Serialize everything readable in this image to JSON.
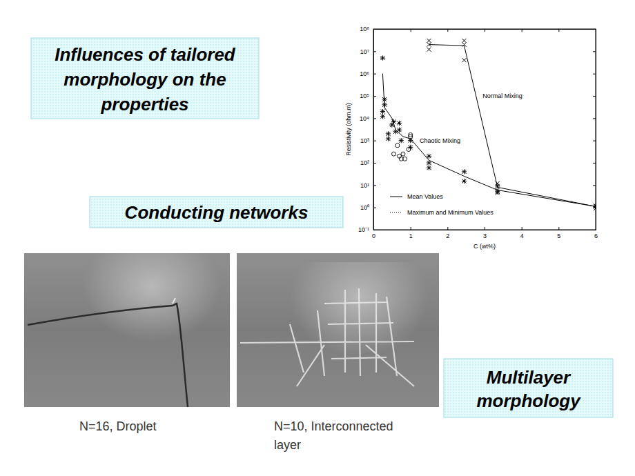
{
  "slide": {
    "title_box": {
      "lines": [
        "Influences of tailored",
        "morphology on the",
        "properties"
      ]
    },
    "section_label": {
      "lines": [
        "Conducting networks"
      ]
    },
    "multilayer_box": {
      "lines": [
        "Multilayer",
        "morphology"
      ]
    },
    "images": [
      {
        "caption_lines": [
          "N=16, Droplet"
        ]
      },
      {
        "caption_lines": [
          "N=10, Interconnected",
          "layer"
        ]
      }
    ]
  },
  "chart_data": {
    "type": "line",
    "xlabel": "C (wt%)",
    "ylabel": "Resistivity (ohm.m)",
    "xlim": [
      0,
      6
    ],
    "ylim": [
      0.1,
      100000000
    ],
    "log": "y",
    "xticks": [
      0,
      1,
      2,
      3,
      4,
      5,
      6
    ],
    "yticks": [
      {
        "value": 0.1,
        "label": "10⁻¹"
      },
      {
        "value": 1,
        "label": "10⁰"
      },
      {
        "value": 10,
        "label": "10¹"
      },
      {
        "value": 100,
        "label": "10²"
      },
      {
        "value": 1000,
        "label": "10³"
      },
      {
        "value": 10000,
        "label": "10⁴"
      },
      {
        "value": 100000,
        "label": "10⁵"
      },
      {
        "value": 1000000,
        "label": "10⁶"
      },
      {
        "value": 10000000,
        "label": "10⁷"
      },
      {
        "value": 100000000,
        "label": "10⁸"
      }
    ],
    "legend": "lower left",
    "legend_entries": [
      {
        "label": "Mean Values",
        "line_style": "solid"
      },
      {
        "label": "Maximum and Minimum Values",
        "line_style": "dotted"
      }
    ],
    "annotations": [
      {
        "text": "Normal Mixing",
        "x": 2.95,
        "y": 100000
      },
      {
        "text": "Chaotic Mixing",
        "x": 1.25,
        "y": 1000
      }
    ],
    "series": [
      {
        "type": "line",
        "line_style": "solid",
        "color": "#000000",
        "x": [
          1.5,
          2.45,
          3.35,
          6
        ],
        "values": [
          20000000,
          18000000,
          8,
          1.1
        ]
      },
      {
        "type": "line",
        "line_style": "solid",
        "color": "#000000",
        "x": [
          0.25,
          0.3,
          0.5,
          0.6,
          0.8,
          1.0,
          1.5,
          2.45,
          3.35,
          6
        ],
        "values": [
          1000000,
          30000,
          10000,
          3000,
          1500,
          1200,
          130,
          25,
          6,
          1.1
        ]
      },
      {
        "type": "scatter",
        "marker": "x",
        "color": "#000000",
        "x": [
          1.5,
          1.5,
          1.5,
          2.45,
          2.45,
          2.45,
          3.35,
          3.35,
          3.35,
          6,
          6
        ],
        "values": [
          30000000,
          20000000,
          12000000,
          30000000,
          20000000,
          4000000,
          12,
          6,
          4.5,
          1.2,
          0.9
        ]
      },
      {
        "type": "scatter",
        "marker": "asterisk",
        "color": "#000000",
        "x": [
          0.25,
          0.25,
          0.25,
          0.3,
          0.3,
          0.4,
          0.4,
          0.5,
          0.55,
          0.6,
          0.7,
          0.7,
          0.75,
          1.0,
          1.0,
          1.5,
          1.5,
          1.5,
          2.45,
          2.45,
          3.35,
          3.35,
          6
        ],
        "values": [
          5000000,
          20000,
          12000,
          70000,
          40000,
          2000,
          1200,
          5000,
          7000,
          2500,
          6000,
          3000,
          1000,
          1000,
          500,
          200,
          100,
          60,
          40,
          15,
          9,
          5,
          1.1
        ]
      },
      {
        "type": "scatter",
        "marker": "circle",
        "color": "#000000",
        "x": [
          0.55,
          0.65,
          0.7,
          0.75,
          0.8,
          0.85,
          0.95,
          1.0,
          1.0
        ],
        "values": [
          250,
          600,
          200,
          150,
          250,
          150,
          400,
          1500,
          1800
        ]
      }
    ]
  }
}
